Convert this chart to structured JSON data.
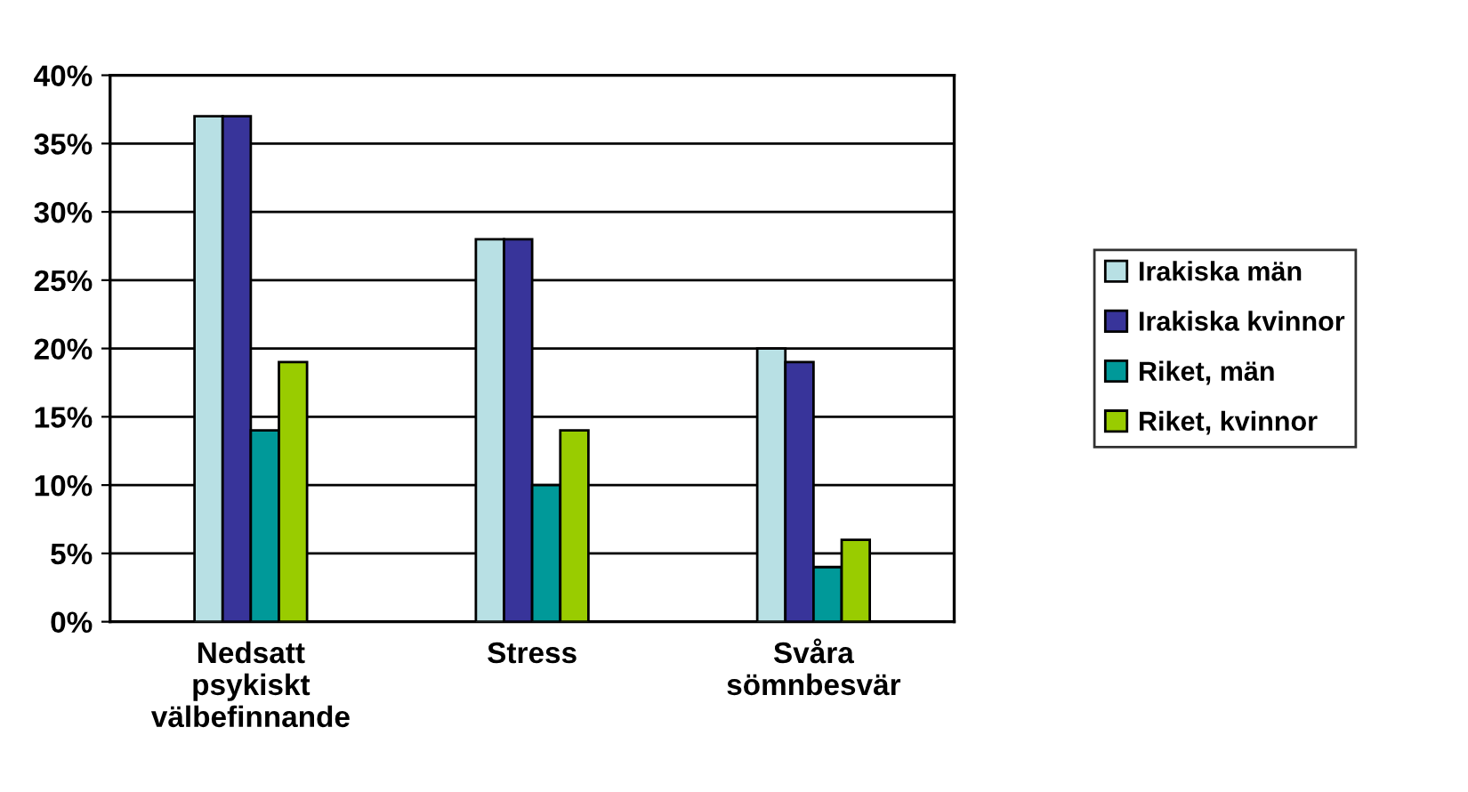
{
  "chart_data": {
    "type": "bar",
    "categories": [
      "Nedsatt\npsykiskt\nvälbefinnande",
      "Stress",
      "Svåra\nsömnbesvär"
    ],
    "series": [
      {
        "name": "Irakiska män",
        "color": "#b8e0e4",
        "values": [
          37,
          28,
          20
        ]
      },
      {
        "name": "Irakiska kvinnor",
        "color": "#38349a",
        "values": [
          37,
          28,
          19
        ]
      },
      {
        "name": "Riket, män",
        "color": "#009999",
        "values": [
          14,
          10,
          4
        ]
      },
      {
        "name": "Riket, kvinnor",
        "color": "#99cc00",
        "values": [
          19,
          14,
          6
        ]
      }
    ],
    "ylim": [
      0,
      40
    ],
    "yticks": [
      {
        "value": 0,
        "label": "0%"
      },
      {
        "value": 5,
        "label": "5%"
      },
      {
        "value": 10,
        "label": "10%"
      },
      {
        "value": 15,
        "label": "15%"
      },
      {
        "value": 20,
        "label": "20%"
      },
      {
        "value": 25,
        "label": "25%"
      },
      {
        "value": 30,
        "label": "30%"
      },
      {
        "value": 35,
        "label": "35%"
      },
      {
        "value": 40,
        "label": "40%"
      }
    ],
    "grid": "y",
    "legend": "right"
  }
}
